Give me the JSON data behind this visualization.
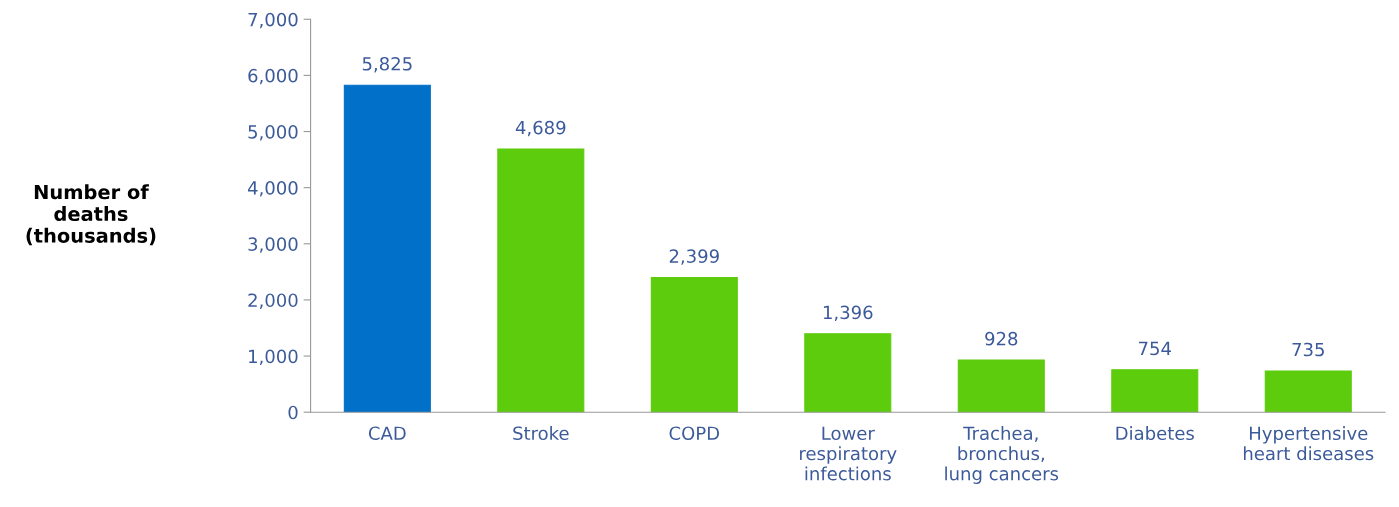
{
  "chart_data": {
    "type": "bar",
    "ylabel": "Number of\ndeaths\n(thousands)",
    "categories": [
      "CAD",
      "Stroke",
      "COPD",
      "Lower\nrespiratory\ninfections",
      "Trachea,\nbronchus,\nlung cancers",
      "Diabetes",
      "Hypertensive\nheart diseases"
    ],
    "values": [
      5825,
      4689,
      2399,
      1396,
      928,
      754,
      735
    ],
    "colors": [
      "#0070c8",
      "#5ccc0c",
      "#5ccc0c",
      "#5ccc0c",
      "#5ccc0c",
      "#5ccc0c",
      "#5ccc0c"
    ],
    "value_labels": [
      "5,825",
      "4,689",
      "2,399",
      "1,396",
      "928",
      "754",
      "735"
    ],
    "ylim": [
      0,
      7000
    ],
    "yticks": [
      0,
      {
        "value": 1000,
        "label": "1,000"
      },
      {
        "value": 2000,
        "label": "2,000"
      },
      {
        "value": 3000,
        "label": "3,000"
      },
      {
        "value": 4000,
        "label": "4,000"
      },
      {
        "value": 5000,
        "label": "5,000"
      },
      {
        "value": 6000,
        "label": "6,000"
      },
      {
        "value": 7000,
        "label": "7,000"
      }
    ],
    "grid": false
  }
}
